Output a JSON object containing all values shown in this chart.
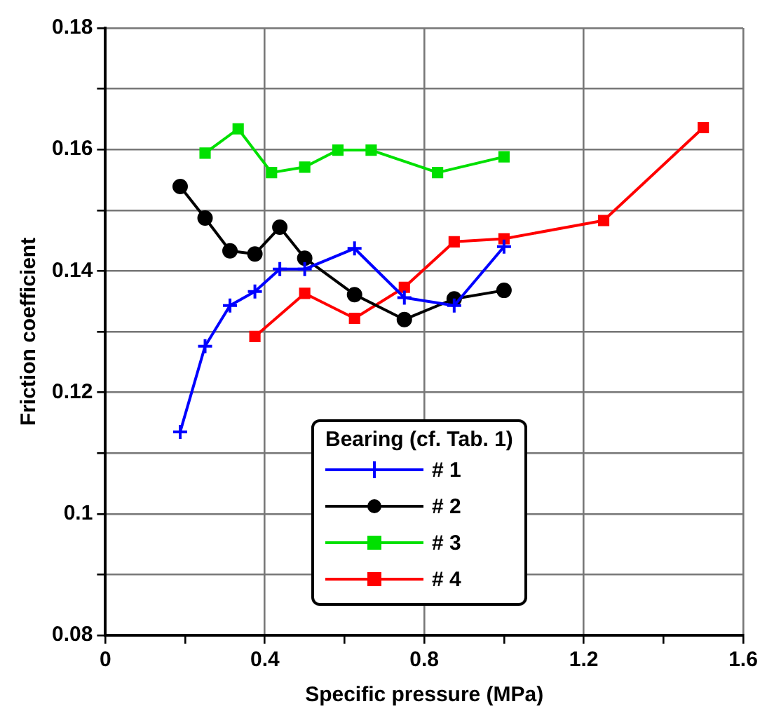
{
  "chart_data": {
    "type": "line",
    "xlabel": "Specific pressure (MPa)",
    "ylabel": "Friction coefficient",
    "legend_title": "Bearing (cf. Tab. 1)",
    "xlim": [
      0,
      1.6
    ],
    "xticks": [
      0,
      {
        "value": 0.2,
        "label": null
      },
      0.4,
      {
        "value": 0.6,
        "label": null
      },
      0.8,
      {
        "value": 1.0,
        "label": null
      },
      1.2,
      {
        "value": 1.4,
        "label": null
      },
      1.6
    ],
    "ylim": [
      0.08,
      0.18
    ],
    "yticks": [
      0.08,
      {
        "value": 0.09,
        "label": null
      },
      0.1,
      {
        "value": 0.11,
        "label": null
      },
      0.12,
      {
        "value": 0.13,
        "label": null
      },
      0.14,
      {
        "value": 0.15,
        "label": null
      },
      0.16,
      {
        "value": 0.17,
        "label": null
      },
      0.18
    ],
    "grid": true,
    "legend": "bottom",
    "line_style": "solid",
    "series": [
      {
        "name": "# 1",
        "color": "#0000ff",
        "marker": "cross",
        "x": [
          0.1875,
          0.25,
          0.3125,
          0.375,
          0.4375,
          0.5,
          0.625,
          0.75,
          0.875,
          1.0
        ],
        "values": [
          0.1135,
          0.1276,
          0.1343,
          0.1366,
          0.1403,
          0.1403,
          0.1437,
          0.1356,
          0.1343,
          0.144
        ]
      },
      {
        "name": "# 2",
        "color": "#000000",
        "marker": "circle",
        "x": [
          0.1875,
          0.25,
          0.3125,
          0.375,
          0.4375,
          0.5,
          0.625,
          0.75,
          0.875,
          1.0
        ],
        "values": [
          0.1539,
          0.1487,
          0.1433,
          0.1428,
          0.1472,
          0.1421,
          0.1361,
          0.132,
          0.1354,
          0.1368
        ]
      },
      {
        "name": "# 3",
        "color": "#00e000",
        "marker": "square",
        "x": [
          0.25,
          0.333,
          0.4167,
          0.5,
          0.5833,
          0.6667,
          0.8333,
          1.0
        ],
        "values": [
          0.1594,
          0.1634,
          0.1562,
          0.1571,
          0.1599,
          0.1599,
          0.1562,
          0.1588
        ]
      },
      {
        "name": "# 4",
        "color": "#ff0000",
        "marker": "square",
        "x": [
          0.375,
          0.5,
          0.625,
          0.75,
          0.875,
          1.0,
          1.25,
          1.5
        ],
        "values": [
          0.1292,
          0.1363,
          0.1322,
          0.1373,
          0.1448,
          0.1453,
          0.1483,
          0.1636
        ]
      }
    ]
  }
}
